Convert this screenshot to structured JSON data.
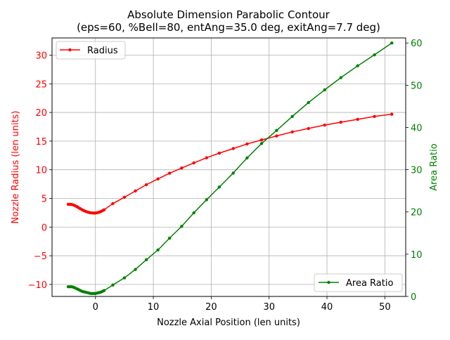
{
  "chart_data": {
    "type": "line",
    "title": "Absolute Dimension Parabolic Contour",
    "subtitle": "(eps=60, %Bell=80, entAng=35.0 deg, exitAng=7.7 deg)",
    "xlabel": "Nozzle Axial Position (len units)",
    "ylabel": "Nozzle Radius (len units)",
    "ylabel_right": "Area Ratio",
    "xlim": [
      -7.5,
      53.6
    ],
    "ylim": [
      -12.1,
      33.0
    ],
    "ylim_right": [
      0,
      61.2
    ],
    "xticks": [
      0,
      10,
      20,
      30,
      40,
      50
    ],
    "yticks": [
      -10,
      -5,
      0,
      5,
      10,
      15,
      20,
      25,
      30
    ],
    "yticks_right": [
      0,
      10,
      20,
      30,
      40,
      50,
      60
    ],
    "grid": true,
    "colors": {
      "radius": "#ff0000",
      "area_ratio": "#008000",
      "grid": "#b0b0b0"
    },
    "series": [
      {
        "name": "Radius",
        "axis": "left",
        "color": "#ff0000",
        "legend_position": "upper-left",
        "x": [
          -4.7,
          -4.4,
          -4.1,
          -3.8,
          -3.5,
          -3.2,
          -2.9,
          -2.6,
          -2.3,
          -2.0,
          -1.7,
          -1.4,
          -1.1,
          -0.8,
          -0.5,
          -0.2,
          0.0,
          0.3,
          0.6,
          0.9,
          1.2,
          1.5,
          3.0,
          5.0,
          6.9,
          8.8,
          10.8,
          12.8,
          14.9,
          17.0,
          19.2,
          21.4,
          23.8,
          26.2,
          28.7,
          31.3,
          34.0,
          36.8,
          39.6,
          42.4,
          45.3,
          48.2,
          51.2
        ],
        "values": [
          3.97,
          3.96,
          3.94,
          3.85,
          3.72,
          3.56,
          3.38,
          3.2,
          3.02,
          2.87,
          2.74,
          2.63,
          2.55,
          2.49,
          2.46,
          2.45,
          2.46,
          2.5,
          2.58,
          2.7,
          2.84,
          3.01,
          4.1,
          5.2,
          6.3,
          7.4,
          8.4,
          9.4,
          10.3,
          11.2,
          12.1,
          12.9,
          13.7,
          14.5,
          15.2,
          15.9,
          16.6,
          17.2,
          17.8,
          18.3,
          18.8,
          19.3,
          19.7
        ]
      },
      {
        "name": "Area Ratio",
        "axis": "right",
        "color": "#008000",
        "legend_position": "lower-right",
        "x": [
          -4.7,
          -4.4,
          -4.1,
          -3.8,
          -3.5,
          -3.2,
          -2.9,
          -2.6,
          -2.3,
          -2.0,
          -1.7,
          -1.4,
          -1.1,
          -0.8,
          -0.5,
          -0.2,
          0.0,
          0.3,
          0.6,
          0.9,
          1.2,
          1.5,
          3.0,
          5.0,
          6.9,
          8.8,
          10.8,
          12.8,
          14.9,
          17.0,
          19.2,
          21.4,
          23.8,
          26.2,
          28.7,
          31.3,
          34.0,
          36.8,
          39.6,
          42.4,
          45.3,
          48.2,
          51.2
        ],
        "values": [
          2.3,
          2.3,
          2.3,
          2.2,
          2.0,
          1.8,
          1.6,
          1.4,
          1.2,
          1.1,
          1.0,
          0.9,
          0.8,
          0.7,
          0.7,
          0.7,
          0.7,
          0.8,
          0.9,
          1.0,
          1.2,
          1.4,
          2.7,
          4.4,
          6.4,
          8.7,
          11.0,
          13.8,
          16.6,
          19.8,
          22.9,
          25.9,
          29.2,
          32.8,
          36.2,
          39.3,
          42.6,
          45.9,
          48.9,
          51.8,
          54.6,
          57.2,
          60.0
        ]
      }
    ]
  }
}
